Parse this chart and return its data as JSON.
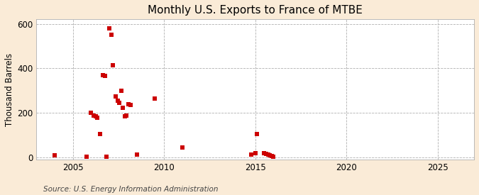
{
  "title": "Monthly U.S. Exports to France of MTBE",
  "ylabel": "Thousand Barrels",
  "source": "Source: U.S. Energy Information Administration",
  "background_color": "#faebd7",
  "plot_background_color": "#ffffff",
  "marker_color": "#cc0000",
  "marker_size": 18,
  "xlim": [
    2003.0,
    2027.0
  ],
  "ylim": [
    -10,
    620
  ],
  "yticks": [
    0,
    200,
    400,
    600
  ],
  "xticks": [
    2005,
    2010,
    2015,
    2020,
    2025
  ],
  "data_points": [
    [
      2004.0,
      10
    ],
    [
      2005.75,
      5
    ],
    [
      2006.0,
      200
    ],
    [
      2006.15,
      190
    ],
    [
      2006.25,
      185
    ],
    [
      2006.35,
      180
    ],
    [
      2006.5,
      105
    ],
    [
      2006.65,
      370
    ],
    [
      2006.75,
      365
    ],
    [
      2006.85,
      5
    ],
    [
      2007.0,
      580
    ],
    [
      2007.1,
      550
    ],
    [
      2007.2,
      415
    ],
    [
      2007.35,
      275
    ],
    [
      2007.45,
      255
    ],
    [
      2007.55,
      245
    ],
    [
      2007.65,
      300
    ],
    [
      2007.75,
      225
    ],
    [
      2007.85,
      185
    ],
    [
      2007.95,
      190
    ],
    [
      2008.05,
      240
    ],
    [
      2008.15,
      235
    ],
    [
      2008.5,
      15
    ],
    [
      2009.5,
      265
    ],
    [
      2011.0,
      45
    ],
    [
      2014.8,
      15
    ],
    [
      2015.0,
      20
    ],
    [
      2015.1,
      105
    ],
    [
      2015.5,
      20
    ],
    [
      2015.6,
      18
    ],
    [
      2015.7,
      15
    ],
    [
      2015.8,
      12
    ],
    [
      2015.9,
      8
    ],
    [
      2016.0,
      5
    ]
  ]
}
